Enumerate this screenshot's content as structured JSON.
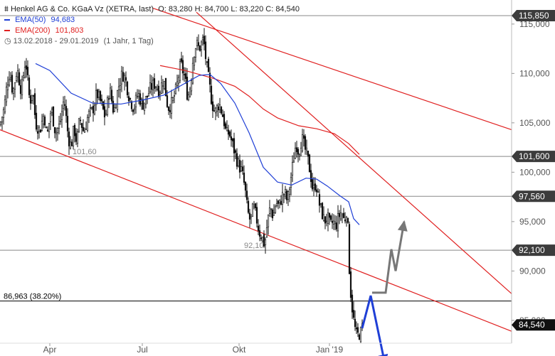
{
  "legend": {
    "title": "Henkel AG & Co. KGaA Vz (XETRA, last)",
    "ohlc": "O: 83,280  H: 84,700  L: 83,220  C: 84,540",
    "ema50_label": "EMA(50)",
    "ema50_value": "94,683",
    "ema200_label": "EMA(200)",
    "ema200_value": "101,803",
    "range": "13.02.2018 - 29.01.2019",
    "range_note": "(1 Jahr, 1 Tag)",
    "colors": {
      "ema50": "#1f3fd6",
      "ema200": "#e02020",
      "text": "#222222"
    }
  },
  "chart_data": {
    "type": "candlestick",
    "title": "Henkel AG & Co. KGaA Vz (XETRA, last)",
    "x_ticks": [
      "Apr",
      "Jul",
      "Okt",
      "Jan '19"
    ],
    "y_ticks": [
      "115,000",
      "110,000",
      "105,000",
      "100,000",
      "95,000",
      "90,000",
      "85,000"
    ],
    "y_tick_values": [
      115,
      110,
      105,
      100,
      95,
      90,
      85
    ],
    "ylim": [
      80.5,
      116.5
    ],
    "x_range_label": "13.02.2018 - 29.01.2019",
    "price_badges": [
      {
        "value": 115.85,
        "label": "115,850",
        "style": "dark"
      },
      {
        "value": 101.6,
        "label": "101,600",
        "style": "dark"
      },
      {
        "value": 97.56,
        "label": "97,560",
        "style": "dark"
      },
      {
        "value": 92.1,
        "label": "92,100",
        "style": "dark"
      },
      {
        "value": 84.54,
        "label": "84,540",
        "style": "black"
      }
    ],
    "horizontal_levels": [
      {
        "value": 101.6,
        "label": "101,60",
        "color": "#888888"
      },
      {
        "value": 97.56,
        "label": "",
        "color": "#888888"
      },
      {
        "value": 92.1,
        "label": "92,10",
        "color": "#888888"
      },
      {
        "value": 86.963,
        "label": "86,963 (38.20%)",
        "color": "#000000"
      },
      {
        "value": 115.85,
        "label": "",
        "color": "#888888"
      }
    ],
    "price_path": [
      [
        0,
        104.8
      ],
      [
        6,
        106.5
      ],
      [
        10,
        109.0
      ],
      [
        14,
        110.2
      ],
      [
        18,
        108.0
      ],
      [
        24,
        110.5
      ],
      [
        30,
        108.2
      ],
      [
        36,
        111.5
      ],
      [
        42,
        107.0
      ],
      [
        46,
        108.5
      ],
      [
        50,
        105.0
      ],
      [
        56,
        104.2
      ],
      [
        62,
        106.0
      ],
      [
        66,
        103.5
      ],
      [
        72,
        106.5
      ],
      [
        78,
        104.0
      ],
      [
        84,
        104.8
      ],
      [
        90,
        107.5
      ],
      [
        96,
        103.5
      ],
      [
        100,
        102.6
      ],
      [
        104,
        104.5
      ],
      [
        108,
        103.0
      ],
      [
        112,
        105.5
      ],
      [
        118,
        104.0
      ],
      [
        124,
        105.8
      ],
      [
        130,
        106.2
      ],
      [
        136,
        108.0
      ],
      [
        142,
        107.0
      ],
      [
        148,
        105.5
      ],
      [
        154,
        108.5
      ],
      [
        160,
        106.0
      ],
      [
        166,
        108.5
      ],
      [
        172,
        110.0
      ],
      [
        176,
        109.5
      ],
      [
        182,
        107.5
      ],
      [
        188,
        106.5
      ],
      [
        194,
        108.0
      ],
      [
        200,
        106.8
      ],
      [
        206,
        107.5
      ],
      [
        212,
        108.6
      ],
      [
        218,
        109.0
      ],
      [
        224,
        108.2
      ],
      [
        230,
        109.5
      ],
      [
        236,
        106.5
      ],
      [
        242,
        107.0
      ],
      [
        248,
        108.5
      ],
      [
        254,
        111.0
      ],
      [
        260,
        109.5
      ],
      [
        264,
        107.5
      ],
      [
        268,
        109.0
      ],
      [
        272,
        112.0
      ],
      [
        276,
        113.0
      ],
      [
        280,
        112.5
      ],
      [
        286,
        113.5
      ],
      [
        290,
        111.0
      ],
      [
        294,
        109.0
      ],
      [
        298,
        107.0
      ],
      [
        302,
        106.0
      ],
      [
        308,
        107.0
      ],
      [
        314,
        105.5
      ],
      [
        318,
        103.8
      ],
      [
        322,
        104.0
      ],
      [
        326,
        103.0
      ],
      [
        330,
        102.0
      ],
      [
        334,
        101.0
      ],
      [
        340,
        100.0
      ],
      [
        344,
        98.5
      ],
      [
        348,
        96.0
      ],
      [
        352,
        95.0
      ],
      [
        356,
        96.5
      ],
      [
        360,
        95.5
      ],
      [
        364,
        94.0
      ],
      [
        368,
        93.5
      ],
      [
        372,
        92.6
      ],
      [
        376,
        95.0
      ],
      [
        380,
        96.5
      ],
      [
        384,
        95.5
      ],
      [
        388,
        97.0
      ],
      [
        392,
        96.5
      ],
      [
        396,
        97.5
      ],
      [
        400,
        98.0
      ],
      [
        404,
        97.0
      ],
      [
        408,
        99.0
      ],
      [
        412,
        101.0
      ],
      [
        416,
        103.0
      ],
      [
        420,
        102.0
      ],
      [
        424,
        103.5
      ],
      [
        428,
        102.5
      ],
      [
        432,
        101.5
      ],
      [
        436,
        100.0
      ],
      [
        440,
        98.0
      ],
      [
        444,
        99.0
      ],
      [
        448,
        97.0
      ],
      [
        452,
        96.0
      ],
      [
        456,
        95.0
      ],
      [
        460,
        95.5
      ],
      [
        464,
        94.5
      ],
      [
        468,
        95.0
      ],
      [
        472,
        94.5
      ],
      [
        476,
        95.5
      ],
      [
        480,
        96.0
      ],
      [
        484,
        95.0
      ],
      [
        488,
        96.5
      ],
      [
        490,
        92.0
      ],
      [
        492,
        88.5
      ],
      [
        494,
        87.0
      ],
      [
        496,
        85.5
      ],
      [
        498,
        84.5
      ],
      [
        500,
        83.8
      ],
      [
        502,
        83.2
      ],
      [
        504,
        83.8
      ],
      [
        506,
        83.5
      ],
      [
        508,
        84.0
      ],
      [
        510,
        84.54
      ]
    ],
    "ema50_path": [
      [
        50,
        111.0
      ],
      [
        70,
        110.3
      ],
      [
        100,
        108.0
      ],
      [
        130,
        107.0
      ],
      [
        170,
        106.9
      ],
      [
        200,
        107.3
      ],
      [
        230,
        107.8
      ],
      [
        260,
        109.0
      ],
      [
        280,
        109.8
      ],
      [
        295,
        109.9
      ],
      [
        310,
        109.0
      ],
      [
        330,
        107.0
      ],
      [
        350,
        104.0
      ],
      [
        370,
        100.5
      ],
      [
        390,
        99.0
      ],
      [
        410,
        98.7
      ],
      [
        430,
        99.4
      ],
      [
        445,
        99.3
      ],
      [
        460,
        98.6
      ],
      [
        478,
        97.6
      ],
      [
        490,
        97.0
      ],
      [
        497,
        95.3
      ],
      [
        505,
        94.68
      ]
    ],
    "ema200_path": [
      [
        225,
        110.8
      ],
      [
        260,
        110.3
      ],
      [
        300,
        109.5
      ],
      [
        330,
        108.7
      ],
      [
        350,
        107.7
      ],
      [
        370,
        106.4
      ],
      [
        390,
        105.5
      ],
      [
        420,
        104.7
      ],
      [
        445,
        104.4
      ],
      [
        470,
        103.9
      ],
      [
        490,
        102.9
      ],
      [
        505,
        101.8
      ]
    ],
    "trendlines": [
      {
        "from": [
          215,
          116.6
        ],
        "to": [
          719,
          104.3
        ],
        "color": "#e02020"
      },
      {
        "from": [
          276,
          116.2
        ],
        "to": [
          719,
          87.7
        ],
        "color": "#e02020"
      },
      {
        "from": [
          0,
          104.3
        ],
        "to": [
          719,
          83.9
        ],
        "color": "#e02020"
      }
    ],
    "scenario_arrows": [
      {
        "name": "bullish",
        "color": "#777777",
        "points": [
          [
            523,
            87.8
          ],
          [
            542,
            87.8
          ],
          [
            550,
            92.2
          ],
          [
            556,
            90.0
          ],
          [
            568,
            95.0
          ]
        ]
      },
      {
        "name": "bearish",
        "color": "#1f3fd6",
        "points": [
          [
            509,
            84.2
          ],
          [
            521,
            87.5
          ],
          [
            541,
            80.6
          ]
        ]
      }
    ]
  }
}
